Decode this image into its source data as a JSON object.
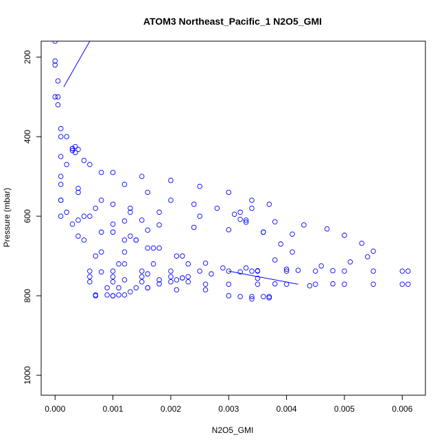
{
  "chart_data": {
    "type": "scatter",
    "title": "ATOM3 Northeast_Pacific_1 N2O5_GMI",
    "xlabel": "N2O5_GMI",
    "ylabel": "Pressure (mbar)",
    "xlim": [
      -0.00024,
      0.0064
    ],
    "ylim": [
      1050,
      160
    ],
    "y_reversed": true,
    "grid": false,
    "legend": "none",
    "color": "#0000ff",
    "x_ticks": [
      "0.000",
      "0.001",
      "0.002",
      "0.003",
      "0.004",
      "0.005",
      "0.006"
    ],
    "x_tick_values": [
      0,
      0.001,
      0.002,
      0.003,
      0.004,
      0.005,
      0.006
    ],
    "y_ticks": [
      "200",
      "400",
      "600",
      "800",
      "1000"
    ],
    "y_tick_values": [
      200,
      400,
      600,
      800,
      1000
    ],
    "series": [
      {
        "points": [
          [
            0.0,
            160
          ],
          [
            0.0,
            210
          ],
          [
            5e-05,
            260
          ],
          [
            5e-05,
            320
          ],
          [
            0.0001,
            380
          ],
          [
            0.0001,
            450
          ],
          [
            0.0001,
            520
          ],
          [
            0.0001,
            560
          ],
          [
            0.0002,
            590
          ],
          [
            0.0003,
            620
          ],
          [
            0.0005,
            660
          ],
          [
            0.0007,
            700
          ],
          [
            0.0008,
            740
          ],
          [
            0.0009,
            780
          ],
          [
            0.001,
            800
          ],
          [
            0.0,
            220
          ],
          [
            5e-05,
            300
          ],
          [
            0.0001,
            400
          ],
          [
            0.0002,
            470
          ],
          [
            0.0004,
            530
          ],
          [
            0.0007,
            580
          ],
          [
            0.001,
            620
          ],
          [
            0.0013,
            650
          ],
          [
            0.0016,
            680
          ],
          [
            0.0017,
            720
          ],
          [
            0.0018,
            760
          ],
          [
            0.0,
            300
          ],
          [
            0.0002,
            400
          ],
          [
            0.0005,
            460
          ],
          [
            0.0008,
            490
          ],
          [
            0.0012,
            520
          ],
          [
            0.0016,
            540
          ],
          [
            0.002,
            560
          ],
          [
            0.0024,
            570
          ],
          [
            0.0028,
            580
          ],
          [
            0.0031,
            595
          ],
          [
            0.0033,
            615
          ],
          [
            0.0036,
            640
          ],
          [
            0.0039,
            670
          ],
          [
            0.0041,
            690
          ],
          [
            0.0038,
            710
          ],
          [
            0.0033,
            730
          ],
          [
            0.0027,
            745
          ],
          [
            0.0022,
            755
          ],
          [
            0.0003,
            430
          ],
          [
            0.0006,
            470
          ],
          [
            0.001,
            490
          ],
          [
            0.0015,
            500
          ],
          [
            0.002,
            510
          ],
          [
            0.0025,
            525
          ],
          [
            0.003,
            540
          ],
          [
            0.0034,
            560
          ],
          [
            0.0037,
            570
          ],
          [
            0.0034,
            580
          ],
          [
            0.0032,
            590
          ],
          [
            0.0033,
            610
          ],
          [
            0.0001,
            500
          ],
          [
            0.0004,
            540
          ],
          [
            0.0008,
            560
          ],
          [
            0.0013,
            580
          ],
          [
            0.0018,
            590
          ],
          [
            0.0025,
            600
          ],
          [
            0.0032,
            608
          ],
          [
            0.0038,
            614
          ],
          [
            0.0043,
            622
          ],
          [
            0.0047,
            632
          ],
          [
            0.005,
            648
          ],
          [
            0.0053,
            668
          ],
          [
            0.0055,
            688
          ],
          [
            0.0054,
            702
          ],
          [
            0.0051,
            715
          ],
          [
            0.0046,
            725
          ],
          [
            0.004,
            733
          ],
          [
            0.0034,
            738
          ],
          [
            0.0001,
            560
          ],
          [
            0.0004,
            610
          ],
          [
            0.0008,
            640
          ],
          [
            0.0012,
            660
          ],
          [
            0.0017,
            680
          ],
          [
            0.0022,
            700
          ],
          [
            0.0026,
            718
          ],
          [
            0.0029,
            730
          ],
          [
            0.0032,
            740
          ],
          [
            0.0035,
            756
          ],
          [
            0.0038,
            770
          ],
          [
            0.0044,
            775
          ],
          [
            0.0048,
            770
          ],
          [
            0.0001,
            600
          ],
          [
            0.0004,
            650
          ],
          [
            0.0008,
            690
          ],
          [
            0.0012,
            720
          ],
          [
            0.0016,
            745
          ],
          [
            0.0021,
            760
          ],
          [
            0.0026,
            785
          ],
          [
            0.003,
            800
          ],
          [
            0.0034,
            808
          ],
          [
            0.0037,
            805
          ],
          [
            0.0005,
            600
          ],
          [
            0.001,
            640
          ],
          [
            0.0014,
            660
          ],
          [
            0.0018,
            680
          ],
          [
            0.0021,
            700
          ],
          [
            0.0023,
            720
          ],
          [
            0.0022,
            755
          ],
          [
            0.0018,
            770
          ],
          [
            0.0013,
            790
          ],
          [
            0.001,
            800
          ],
          [
            0.0007,
            800
          ],
          [
            0.001,
            570
          ],
          [
            0.0013,
            590
          ],
          [
            0.0015,
            610
          ],
          [
            0.0016,
            635
          ],
          [
            0.0014,
            660
          ],
          [
            0.0012,
            690
          ],
          [
            0.0011,
            720
          ],
          [
            0.0012,
            760
          ],
          [
            0.0016,
            780
          ],
          [
            0.0021,
            785
          ],
          [
            0.0006,
            738
          ],
          [
            0.001,
            738
          ],
          [
            0.0015,
            738
          ],
          [
            0.002,
            738
          ],
          [
            0.0025,
            738
          ],
          [
            0.003,
            738
          ],
          [
            0.0035,
            738
          ],
          [
            0.004,
            738
          ],
          [
            0.0045,
            738
          ],
          [
            0.005,
            738
          ],
          [
            0.0055,
            738
          ],
          [
            0.006,
            738
          ],
          [
            0.0061,
            738
          ],
          [
            0.0026,
            771
          ],
          [
            0.003,
            771
          ],
          [
            0.0035,
            771
          ],
          [
            0.004,
            771
          ],
          [
            0.0045,
            771
          ],
          [
            0.005,
            771
          ],
          [
            0.0055,
            771
          ],
          [
            0.006,
            771
          ],
          [
            0.0061,
            771
          ],
          [
            0.0006,
            752
          ],
          [
            0.001,
            752
          ],
          [
            0.0015,
            752
          ],
          [
            0.002,
            752
          ],
          [
            0.0023,
            752
          ],
          [
            0.0006,
            765
          ],
          [
            0.001,
            765
          ],
          [
            0.0015,
            765
          ],
          [
            0.002,
            765
          ],
          [
            0.0023,
            765
          ],
          [
            0.0007,
            798
          ],
          [
            0.0009,
            798
          ],
          [
            0.0011,
            798
          ],
          [
            0.0012,
            798
          ],
          [
            0.0011,
            780
          ],
          [
            0.0014,
            780
          ],
          [
            0.0016,
            780
          ],
          [
            0.0032,
            802
          ],
          [
            0.0034,
            802
          ],
          [
            0.0036,
            802
          ],
          [
            0.0037,
            802
          ],
          [
            0.0035,
            737
          ],
          [
            0.0042,
            736
          ],
          [
            0.0048,
            737
          ],
          [
            0.0006,
            600
          ],
          [
            0.0012,
            612
          ],
          [
            0.0018,
            622
          ],
          [
            0.0024,
            628
          ],
          [
            0.003,
            634
          ],
          [
            0.0036,
            640
          ],
          [
            0.0041,
            645
          ],
          [
            0.0003,
            430
          ],
          [
            0.00035,
            425
          ],
          [
            0.0004,
            432
          ],
          [
            0.00035,
            440
          ],
          [
            0.0003,
            435
          ]
        ]
      }
    ],
    "lines": [
      [
        [
          0.0006,
          160
        ],
        [
          0.00015,
          275
        ]
      ],
      [
        [
          0.003,
          738
        ],
        [
          0.0042,
          771
        ]
      ]
    ]
  }
}
